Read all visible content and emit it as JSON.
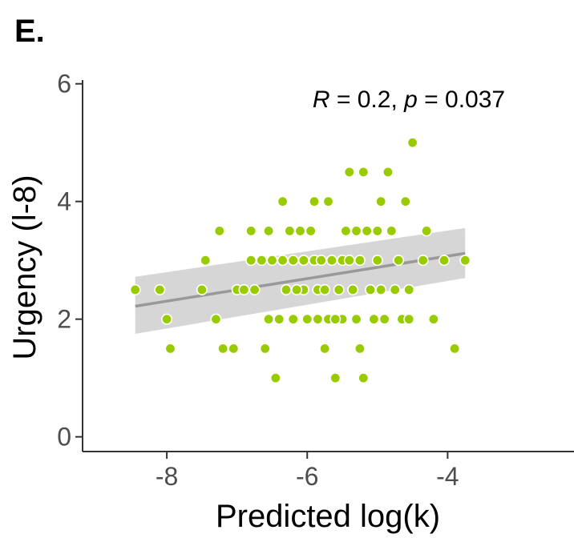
{
  "chart_data": {
    "type": "scatter",
    "panel_label": "E.",
    "xlabel": "Predicted log(k)",
    "ylabel": "Urgency (l-8)",
    "xlim": [
      -9.2,
      -2.2
    ],
    "ylim": [
      -0.25,
      6.2
    ],
    "x_ticks": [
      -8,
      -6,
      -4
    ],
    "x_tick_labels": [
      "-8",
      "-6",
      "-4"
    ],
    "y_ticks": [
      0,
      2,
      4,
      6
    ],
    "y_tick_labels": [
      "0",
      "2",
      "4",
      "6"
    ],
    "grid": false,
    "annotation": {
      "r_symbol": "R",
      "r_text": " = 0.2, ",
      "p_symbol": "p",
      "p_text": " = 0.037"
    },
    "point_color": "#99cc00",
    "line_color": "#999999",
    "ribbon_color": "#cccccc",
    "regression": {
      "x": [
        -8.45,
        -3.75
      ],
      "y": [
        2.22,
        3.12
      ],
      "ci_lower": [
        1.75,
        2.7
      ],
      "ci_upper": [
        2.72,
        3.55
      ]
    },
    "points": [
      {
        "x": -8.45,
        "y": 2.5
      },
      {
        "x": -8.1,
        "y": 2.5
      },
      {
        "x": -8.0,
        "y": 2.0
      },
      {
        "x": -7.95,
        "y": 1.5
      },
      {
        "x": -7.5,
        "y": 2.5
      },
      {
        "x": -7.45,
        "y": 3.0
      },
      {
        "x": -7.3,
        "y": 2.0
      },
      {
        "x": -7.25,
        "y": 3.5
      },
      {
        "x": -7.2,
        "y": 1.5
      },
      {
        "x": -7.05,
        "y": 1.5
      },
      {
        "x": -7.0,
        "y": 2.5
      },
      {
        "x": -6.9,
        "y": 2.5
      },
      {
        "x": -6.8,
        "y": 3.5
      },
      {
        "x": -6.8,
        "y": 3.0
      },
      {
        "x": -6.75,
        "y": 2.5
      },
      {
        "x": -6.65,
        "y": 3.0
      },
      {
        "x": -6.6,
        "y": 1.5
      },
      {
        "x": -6.55,
        "y": 2.0
      },
      {
        "x": -6.55,
        "y": 3.5
      },
      {
        "x": -6.5,
        "y": 3.0
      },
      {
        "x": -6.45,
        "y": 1.0
      },
      {
        "x": -6.4,
        "y": 2.0
      },
      {
        "x": -6.35,
        "y": 3.0
      },
      {
        "x": -6.35,
        "y": 4.0
      },
      {
        "x": -6.3,
        "y": 2.5
      },
      {
        "x": -6.25,
        "y": 3.5
      },
      {
        "x": -6.2,
        "y": 2.0
      },
      {
        "x": -6.2,
        "y": 3.0
      },
      {
        "x": -6.1,
        "y": 3.5
      },
      {
        "x": -6.05,
        "y": 2.5
      },
      {
        "x": -6.05,
        "y": 3.0
      },
      {
        "x": -6.0,
        "y": 2.0
      },
      {
        "x": -5.95,
        "y": 3.5
      },
      {
        "x": -5.9,
        "y": 3.0
      },
      {
        "x": -5.9,
        "y": 4.0
      },
      {
        "x": -5.85,
        "y": 2.0
      },
      {
        "x": -5.85,
        "y": 2.5
      },
      {
        "x": -5.8,
        "y": 3.0
      },
      {
        "x": -5.75,
        "y": 2.5
      },
      {
        "x": -5.75,
        "y": 1.5
      },
      {
        "x": -5.7,
        "y": 4.0
      },
      {
        "x": -5.7,
        "y": 2.0
      },
      {
        "x": -5.65,
        "y": 3.0
      },
      {
        "x": -5.6,
        "y": 1.0
      },
      {
        "x": -5.55,
        "y": 2.5
      },
      {
        "x": -5.5,
        "y": 3.0
      },
      {
        "x": -5.5,
        "y": 2.0
      },
      {
        "x": -5.45,
        "y": 3.5
      },
      {
        "x": -5.4,
        "y": 4.5
      },
      {
        "x": -5.4,
        "y": 3.0
      },
      {
        "x": -5.35,
        "y": 2.5
      },
      {
        "x": -5.3,
        "y": 3.5
      },
      {
        "x": -5.3,
        "y": 2.0
      },
      {
        "x": -5.25,
        "y": 1.5
      },
      {
        "x": -5.25,
        "y": 3.0
      },
      {
        "x": -5.2,
        "y": 1.0
      },
      {
        "x": -5.2,
        "y": 4.5
      },
      {
        "x": -5.15,
        "y": 3.5
      },
      {
        "x": -5.1,
        "y": 2.5
      },
      {
        "x": -5.05,
        "y": 2.0
      },
      {
        "x": -5.0,
        "y": 3.0
      },
      {
        "x": -5.0,
        "y": 3.5
      },
      {
        "x": -4.95,
        "y": 4.0
      },
      {
        "x": -4.9,
        "y": 2.0
      },
      {
        "x": -4.85,
        "y": 4.5
      },
      {
        "x": -4.8,
        "y": 3.5
      },
      {
        "x": -4.75,
        "y": 2.5
      },
      {
        "x": -4.7,
        "y": 3.0
      },
      {
        "x": -4.65,
        "y": 2.0
      },
      {
        "x": -4.6,
        "y": 4.0
      },
      {
        "x": -4.55,
        "y": 2.5
      },
      {
        "x": -4.5,
        "y": 5.0
      },
      {
        "x": -4.55,
        "y": 2.0
      },
      {
        "x": -4.95,
        "y": 2.5
      },
      {
        "x": -5.6,
        "y": 2.0
      },
      {
        "x": -6.15,
        "y": 2.5
      },
      {
        "x": -4.35,
        "y": 3.0
      },
      {
        "x": -4.3,
        "y": 3.5
      },
      {
        "x": -4.2,
        "y": 2.0
      },
      {
        "x": -3.9,
        "y": 1.5
      },
      {
        "x": -3.75,
        "y": 3.0
      },
      {
        "x": -4.05,
        "y": 3.0
      }
    ]
  }
}
